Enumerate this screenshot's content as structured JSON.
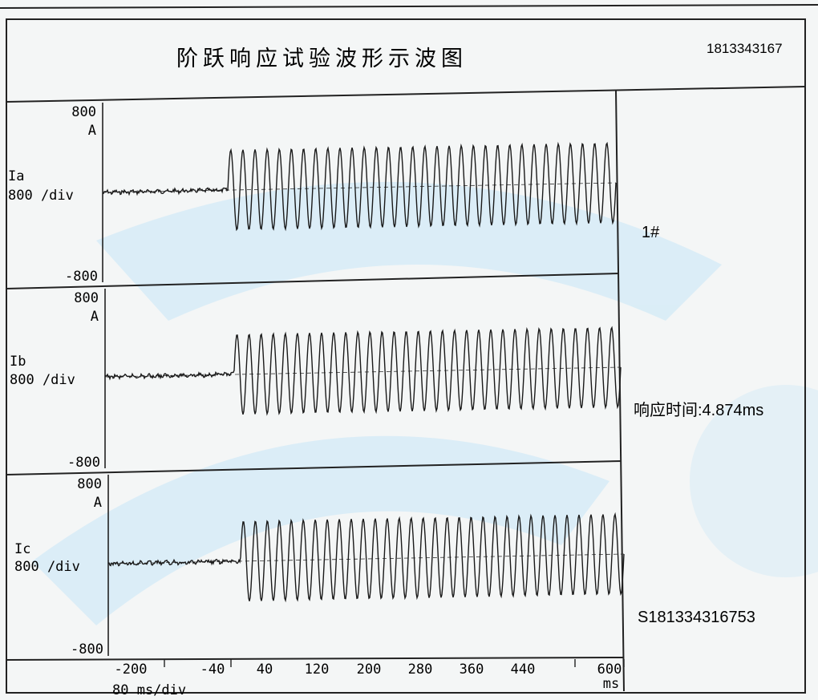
{
  "header": {
    "title": "阶跃响应试验波形示波图",
    "serial_top": "1813343167"
  },
  "side": {
    "unit_label": "1#",
    "response_time": "响应时间:4.874ms",
    "serial_bottom": "S181334316753"
  },
  "chart_data": {
    "type": "line",
    "channels": [
      {
        "name": "Ia",
        "top_label": "800",
        "unit": "A",
        "div_label": "800  /div",
        "bottom_label": "-800"
      },
      {
        "name": "Ib",
        "top_label": "800",
        "unit": "A",
        "div_label": "800  /div",
        "bottom_label": "-800"
      },
      {
        "name": "Ic",
        "top_label": "800",
        "unit": "A",
        "div_label": "800  /div",
        "bottom_label": "-800"
      }
    ],
    "ylim": [
      -800,
      800
    ],
    "x_ticks": [
      "-200",
      "-40",
      "40",
      "120",
      "200",
      "280",
      "360",
      "440",
      "600"
    ],
    "x_unit": "ms",
    "x_scale_label": "80 ms/div",
    "xlim": [
      -200,
      600
    ],
    "step_time_ms": 0,
    "cycles_after_step": 32,
    "amplitude_after_step_per_div": 1.0,
    "baseline_noise_per_div": 0.04
  }
}
